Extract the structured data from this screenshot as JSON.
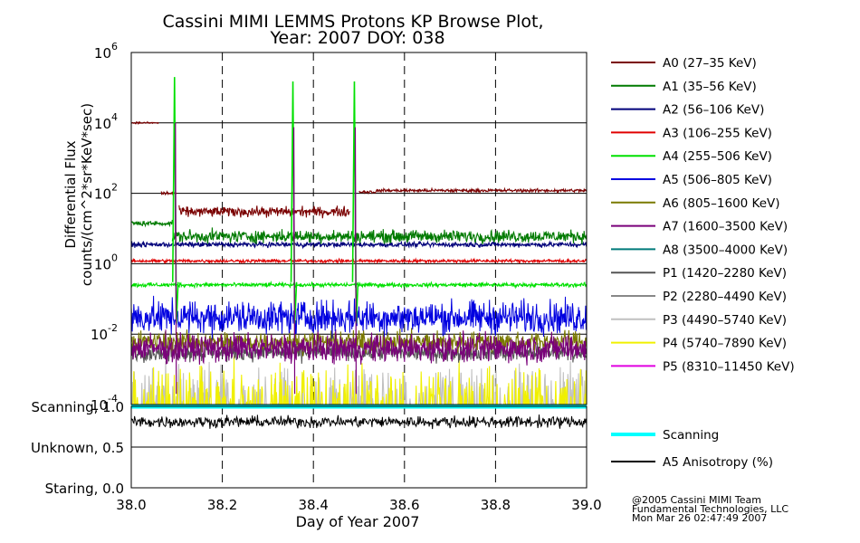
{
  "chart_data": [
    {
      "type": "line",
      "title": "Cassini MIMI LEMMS Protons KP Browse Plot,",
      "subtitle": "Year: 2007 DOY: 038",
      "xlabel": "Day of Year 2007",
      "ylabel": "Differential Flux",
      "ylabel2": "counts/(cm^2*sr*KeV*sec)",
      "yscale": "log",
      "xlim": [
        38.0,
        39.0
      ],
      "ylim_exp": [
        -4,
        6
      ],
      "x_ticks": [
        "38.0",
        "38.2",
        "38.4",
        "38.6",
        "38.8",
        "39.0"
      ],
      "x_tick_values": [
        38.0,
        38.2,
        38.4,
        38.6,
        38.8,
        39.0
      ],
      "y_tick_exps": [
        "6",
        "4",
        "2",
        "0",
        "-2",
        "-4"
      ],
      "y_tick_base": "10",
      "series": [
        {
          "name": "A0 (27–35 KeV)",
          "color": "#7a0000",
          "segments": [
            {
              "x0": 38.0,
              "x1": 38.06,
              "level": 10000,
              "noise_dex": 0.02
            },
            {
              "x0": 38.066,
              "x1": 38.1,
              "level": 100,
              "noise_dex": 0.05
            },
            {
              "x0": 38.105,
              "x1": 38.48,
              "level": 30,
              "noise_dex": 0.12
            },
            {
              "x0": 38.5,
              "x1": 38.54,
              "level": 110,
              "noise_dex": 0.04
            },
            {
              "x0": 38.54,
              "x1": 39.0,
              "level": 120,
              "noise_dex": 0.04
            }
          ]
        },
        {
          "name": "A1 (35–56 KeV)",
          "color": "#007a00",
          "segments": [
            {
              "x0": 38.0,
              "x1": 38.09,
              "level": 14,
              "noise_dex": 0.06
            },
            {
              "x0": 38.09,
              "x1": 39.0,
              "level": 6,
              "noise_dex": 0.15
            }
          ]
        },
        {
          "name": "A2 (56–106 KeV)",
          "color": "#00007a",
          "segments": [
            {
              "x0": 38.0,
              "x1": 39.0,
              "level": 3.5,
              "noise_dex": 0.06
            }
          ]
        },
        {
          "name": "A3 (106–255 KeV)",
          "color": "#e00000",
          "segments": [
            {
              "x0": 38.0,
              "x1": 39.0,
              "level": 1.2,
              "noise_dex": 0.04
            }
          ]
        },
        {
          "name": "A4 (255–506 KeV)",
          "color": "#00e000",
          "segments": [
            {
              "x0": 38.0,
              "x1": 39.0,
              "level": 0.25,
              "noise_dex": 0.05
            }
          ]
        },
        {
          "name": "A5 (506–805 KeV)",
          "color": "#0000e0",
          "segments": [
            {
              "x0": 38.0,
              "x1": 39.0,
              "level": 0.03,
              "noise_dex": 0.4
            }
          ]
        },
        {
          "name": "A6 (805–1600 KeV)",
          "color": "#7a7a00",
          "segments": [
            {
              "x0": 38.0,
              "x1": 39.0,
              "level": 0.006,
              "noise_dex": 0.25
            }
          ]
        },
        {
          "name": "A7 (1600–3500 KeV)",
          "color": "#7a007a",
          "segments": [
            {
              "x0": 38.0,
              "x1": 39.0,
              "level": 0.004,
              "noise_dex": 0.35
            }
          ]
        },
        {
          "name": "A8 (3500–4000 KeV)",
          "color": "#007a7a",
          "segments": []
        },
        {
          "name": "P1 (1420–2280 KeV)",
          "color": "#555555",
          "segments": [
            {
              "x0": 38.0,
              "x1": 39.0,
              "level": 0.003,
              "noise_dex": 0.2
            }
          ]
        },
        {
          "name": "P2 (2280–4490 KeV)",
          "color": "#888888",
          "segments": []
        },
        {
          "name": "P3 (4490–5740 KeV)",
          "color": "#c0c0c0",
          "segments": [
            {
              "x0": 38.0,
              "x1": 39.0,
              "level": 0.00012,
              "noise_dex": 0.25
            }
          ]
        },
        {
          "name": "P4 (5740–7890 KeV)",
          "color": "#f0f000",
          "segments": [
            {
              "x0": 38.0,
              "x1": 39.0,
              "level": 0.00012,
              "noise_dex": 0.3
            }
          ]
        },
        {
          "name": "P5 (8310–11450 KeV)",
          "color": "#e000e0",
          "segments": []
        }
      ],
      "events": [
        {
          "x": 38.095,
          "peak": 200000
        },
        {
          "x": 38.355,
          "peak": 150000
        },
        {
          "x": 38.49,
          "peak": 150000
        }
      ]
    },
    {
      "type": "line",
      "xlim": [
        38.0,
        39.0
      ],
      "ylim": [
        0.0,
        1.0
      ],
      "y_tick_labels": [
        "Scanning, 1.0",
        "Unknown, 0.5",
        "Staring, 0.0"
      ],
      "y_tick_values": [
        1.0,
        0.5,
        0.0
      ],
      "series": [
        {
          "name": "Scanning",
          "color": "#00ffff",
          "level": 1.0
        },
        {
          "name": "A5 Anisotropy (%)",
          "color": "#000000",
          "level": 0.81,
          "noise": 0.06
        }
      ]
    }
  ],
  "footer": {
    "line1": "@2005 Cassini MIMI Team",
    "line2": "Fundamental Technologies, LLC",
    "line3": "Mon Mar 26 02:47:49 2007"
  }
}
